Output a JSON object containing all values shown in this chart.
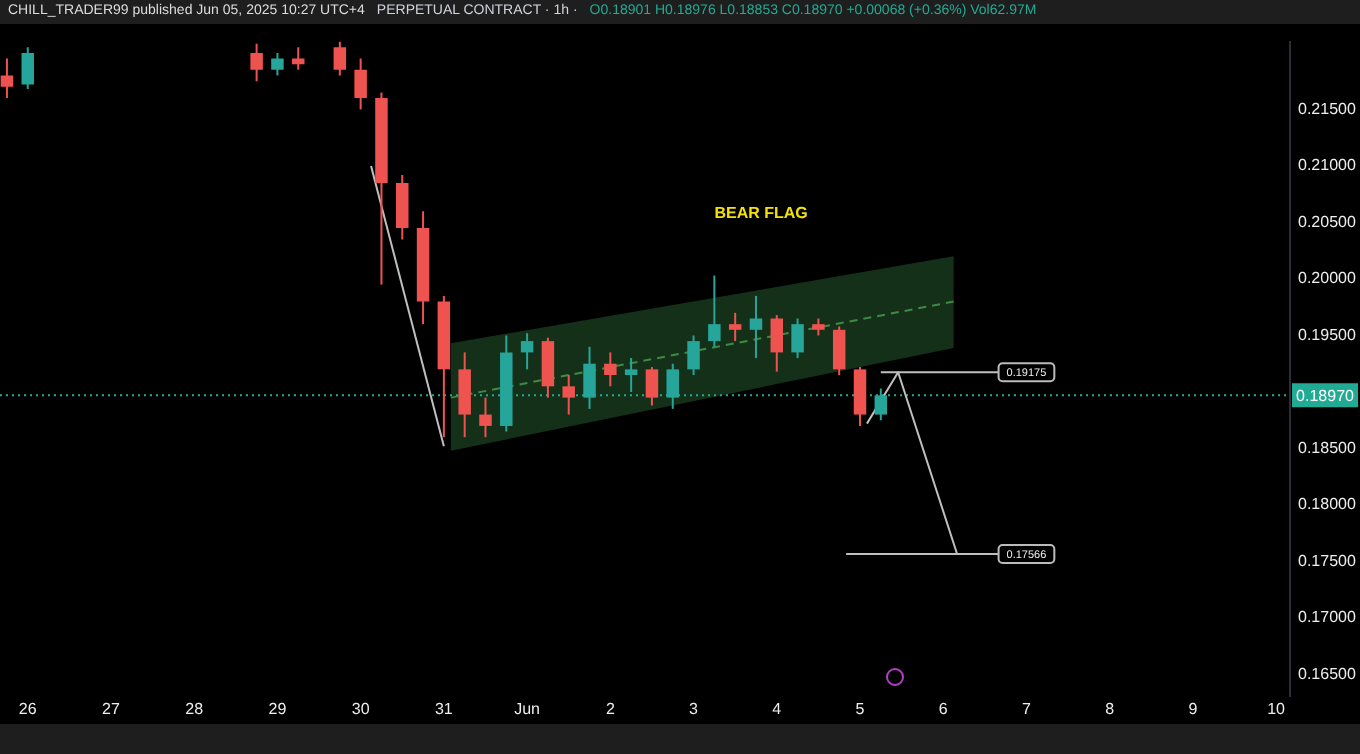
{
  "chart_data": {
    "type": "candlestick",
    "title": "PERPETUAL CONTRACT · 1h ·",
    "subtitle": "O0.18901 H0.18976 L0.18853 C0.18970 +0.00068 (+0.36%) Vol62.97M",
    "annotations": [
      "CHILL_TRADER99 published Jun 05, 2025 10:27 UTC+4",
      "BEAR FLAG",
      {
        "text": "0.19175",
        "x": "2025-06-07T00:00",
        "y": 0.19175
      },
      {
        "text": "0.17566",
        "x": "2025-06-07T00:00",
        "y": 0.17566
      }
    ],
    "x": [
      "2025-05-25T18:00",
      "2025-05-26T00:00",
      "2025-05-28T18:00",
      "2025-05-29T00:00",
      "2025-05-29T06:00",
      "2025-05-29T18:00",
      "2025-05-30T00:00",
      "2025-05-30T06:00",
      "2025-05-30T12:00",
      "2025-05-30T18:00",
      "2025-05-31T00:00",
      "2025-05-31T06:00",
      "2025-05-31T12:00",
      "2025-05-31T18:00",
      "2025-06-01T00:00",
      "2025-06-01T06:00",
      "2025-06-01T12:00",
      "2025-06-01T18:00",
      "2025-06-02T00:00",
      "2025-06-02T06:00",
      "2025-06-02T12:00",
      "2025-06-02T18:00",
      "2025-06-03T00:00",
      "2025-06-03T06:00",
      "2025-06-03T12:00",
      "2025-06-03T18:00",
      "2025-06-04T00:00",
      "2025-06-04T06:00",
      "2025-06-04T12:00",
      "2025-06-04T18:00",
      "2025-06-05T00:00",
      "2025-06-05T06:00"
    ],
    "ohlc": [
      [
        0.218,
        0.2195,
        0.216,
        0.217
      ],
      [
        0.2172,
        0.2205,
        0.2168,
        0.22
      ],
      [
        0.22,
        0.2208,
        0.2175,
        0.2185
      ],
      [
        0.2185,
        0.22,
        0.218,
        0.2195
      ],
      [
        0.2195,
        0.2205,
        0.2185,
        0.219
      ],
      [
        0.2205,
        0.221,
        0.218,
        0.2185
      ],
      [
        0.2185,
        0.2195,
        0.215,
        0.216
      ],
      [
        0.216,
        0.2165,
        0.1995,
        0.2085
      ],
      [
        0.2085,
        0.2092,
        0.2035,
        0.2045
      ],
      [
        0.2045,
        0.206,
        0.196,
        0.198
      ],
      [
        0.198,
        0.1985,
        0.186,
        0.192
      ],
      [
        0.192,
        0.1935,
        0.186,
        0.188
      ],
      [
        0.188,
        0.1895,
        0.186,
        0.187
      ],
      [
        0.187,
        0.195,
        0.1865,
        0.1935
      ],
      [
        0.1935,
        0.1952,
        0.192,
        0.1945
      ],
      [
        0.1945,
        0.1948,
        0.1895,
        0.1905
      ],
      [
        0.1905,
        0.1915,
        0.188,
        0.1895
      ],
      [
        0.1895,
        0.194,
        0.1885,
        0.1925
      ],
      [
        0.1925,
        0.1935,
        0.1905,
        0.1915
      ],
      [
        0.1915,
        0.193,
        0.19,
        0.192
      ],
      [
        0.192,
        0.1922,
        0.1888,
        0.1895
      ],
      [
        0.1895,
        0.1925,
        0.1885,
        0.192
      ],
      [
        0.192,
        0.195,
        0.1915,
        0.1945
      ],
      [
        0.1945,
        0.2003,
        0.194,
        0.196
      ],
      [
        0.196,
        0.197,
        0.1945,
        0.1955
      ],
      [
        0.1955,
        0.1985,
        0.193,
        0.1965
      ],
      [
        0.1965,
        0.1968,
        0.1918,
        0.1935
      ],
      [
        0.1935,
        0.1965,
        0.193,
        0.196
      ],
      [
        0.196,
        0.1965,
        0.195,
        0.1955
      ],
      [
        0.1955,
        0.1958,
        0.1915,
        0.192
      ],
      [
        0.192,
        0.1922,
        0.187,
        0.188
      ],
      [
        0.188,
        0.1903,
        0.1875,
        0.1897
      ]
    ],
    "colors": [
      "#ef5350",
      "#26a69a",
      "#ef5350",
      "#26a69a",
      "#ef5350",
      "#ef5350",
      "#ef5350",
      "#ef5350",
      "#ef5350",
      "#ef5350",
      "#ef5350",
      "#ef5350",
      "#ef5350",
      "#26a69a",
      "#26a69a",
      "#ef5350",
      "#ef5350",
      "#26a69a",
      "#ef5350",
      "#26a69a",
      "#ef5350",
      "#26a69a",
      "#26a69a",
      "#26a69a",
      "#ef5350",
      "#26a69a",
      "#ef5350",
      "#26a69a",
      "#ef5350",
      "#ef5350",
      "#ef5350",
      "#26a69a"
    ],
    "series": [
      {
        "type": "line",
        "line_style": "dashed",
        "color": "#3d8a45",
        "x": [
          "2025-05-31T02:00",
          "2025-06-06T03:00"
        ],
        "values": [
          0.1895,
          0.198
        ],
        "lower": [
          0.1848,
          0.1939
        ],
        "upper": [
          0.1943,
          0.202
        ]
      },
      {
        "type": "line",
        "line_style": "solid",
        "color": "#bfbfbf",
        "x": [
          "2025-05-30T03:00",
          "2025-05-31T00:00"
        ],
        "values": [
          0.21,
          0.1852
        ]
      },
      {
        "type": "line",
        "line_style": "solid",
        "color": "#bfbfbf",
        "x": [
          "2025-06-05T02:00",
          "2025-06-05T11:00",
          "2025-06-06T04:00"
        ],
        "values": [
          0.1872,
          0.19175,
          0.17566
        ]
      },
      {
        "type": "line",
        "line_style": "solid",
        "color": "#bfbfbf",
        "x": [
          "2025-06-05T06:00",
          "2025-06-07T08:00"
        ],
        "values": [
          0.19175,
          0.19175
        ]
      },
      {
        "type": "line",
        "line_style": "solid",
        "color": "#bfbfbf",
        "x": [
          "2025-06-04T20:00",
          "2025-06-07T08:00"
        ],
        "values": [
          0.17566,
          0.17566
        ]
      }
    ],
    "ref_lines": [
      {
        "axis": "y",
        "value": 0.1897,
        "label": "0.18970",
        "color": "#22ab94",
        "line_style": "dotted"
      }
    ],
    "xlim": [
      "2025-05-25T16:00",
      "2025-06-10T04:00"
    ],
    "xticks": [
      {
        "value": "2025-05-26",
        "label": "26"
      },
      {
        "value": "2025-05-27",
        "label": "27"
      },
      {
        "value": "2025-05-28",
        "label": "28"
      },
      {
        "value": "2025-05-29",
        "label": "29"
      },
      {
        "value": "2025-05-30",
        "label": "30"
      },
      {
        "value": "2025-05-31",
        "label": "31"
      },
      {
        "value": "2025-06-01",
        "label": "Jun"
      },
      {
        "value": "2025-06-02",
        "label": "2"
      },
      {
        "value": "2025-06-03",
        "label": "3"
      },
      {
        "value": "2025-06-04",
        "label": "4"
      },
      {
        "value": "2025-06-05",
        "label": "5"
      },
      {
        "value": "2025-06-06",
        "label": "6"
      },
      {
        "value": "2025-06-07",
        "label": "7"
      },
      {
        "value": "2025-06-08",
        "label": "8"
      },
      {
        "value": "2025-06-09",
        "label": "9"
      },
      {
        "value": "2025-06-10",
        "label": "10"
      }
    ],
    "ylim": [
      0.1631,
      0.221
    ],
    "yticks": [
      {
        "value": 0.165,
        "label": "0.16500"
      },
      {
        "value": 0.17,
        "label": "0.17000"
      },
      {
        "value": 0.175,
        "label": "0.17500"
      },
      {
        "value": 0.18,
        "label": "0.18000"
      },
      {
        "value": 0.185,
        "label": "0.18500"
      },
      {
        "value": 0.195,
        "label": "0.19500"
      },
      {
        "value": 0.2,
        "label": "0.20000"
      },
      {
        "value": 0.205,
        "label": "0.20500"
      },
      {
        "value": 0.21,
        "label": "0.21000"
      },
      {
        "value": 0.215,
        "label": "0.21500"
      }
    ],
    "grid": false,
    "legend": false,
    "marker": "none"
  }
}
